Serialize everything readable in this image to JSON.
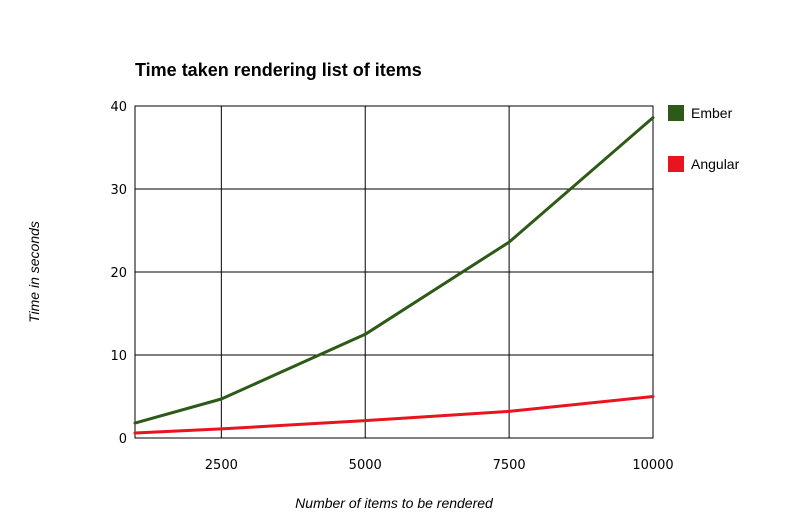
{
  "chart_data": {
    "type": "line",
    "title": "Time taken rendering list of items",
    "xlabel": "Number of items to be rendered",
    "ylabel": "Time in seconds",
    "xlim": [
      1000,
      10000
    ],
    "ylim": [
      0,
      40
    ],
    "x_ticks": [
      "2500",
      "5000",
      "7500",
      "10000"
    ],
    "x_tick_values": [
      2500,
      5000,
      7500,
      10000
    ],
    "y_ticks": [
      "0",
      "10",
      "20",
      "30",
      "40"
    ],
    "y_tick_values": [
      0,
      10,
      20,
      30,
      40
    ],
    "grid": true,
    "legend_position": "right",
    "x": [
      1000,
      2500,
      5000,
      7500,
      10000
    ],
    "series": [
      {
        "name": "Ember",
        "color": "#2d5a16",
        "values": [
          1.8,
          4.7,
          12.5,
          23.6,
          38.6
        ]
      },
      {
        "name": "Angular",
        "color": "#e8141e",
        "values": [
          0.6,
          1.1,
          2.1,
          3.2,
          5.0
        ]
      }
    ]
  }
}
